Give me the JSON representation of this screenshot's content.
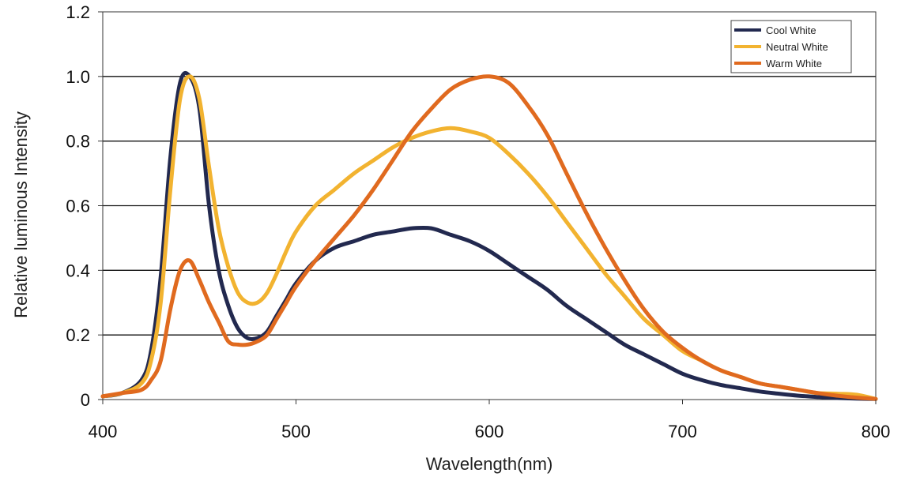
{
  "chart_data": {
    "type": "line",
    "title": "",
    "xlabel": "Wavelength(nm)",
    "ylabel": "Relative luminous Intensity",
    "xlim": [
      400,
      800
    ],
    "ylim": [
      0,
      1.2
    ],
    "x_ticks": [
      400,
      500,
      600,
      700,
      800
    ],
    "x_tick_labels": [
      "400",
      "500",
      "600",
      "700",
      "800"
    ],
    "y_ticks": [
      0,
      0.2,
      0.4,
      0.6,
      0.8,
      1.0,
      1.2
    ],
    "y_tick_labels": [
      "0",
      "0.2",
      "0.4",
      "0.6",
      "0.8",
      "1.0",
      "1.2"
    ],
    "grid": "horizontal",
    "legend_position": "top-right",
    "series": [
      {
        "name": "Cool White",
        "color": "#22294f",
        "x": [
          400,
          410,
          420,
          425,
          430,
          435,
          440,
          445,
          450,
          455,
          460,
          465,
          470,
          475,
          480,
          485,
          490,
          495,
          500,
          510,
          520,
          530,
          540,
          550,
          560,
          570,
          580,
          590,
          600,
          610,
          620,
          630,
          640,
          650,
          660,
          670,
          680,
          690,
          700,
          710,
          720,
          730,
          740,
          750,
          760,
          770,
          780,
          790,
          800
        ],
        "y": [
          0.01,
          0.02,
          0.06,
          0.15,
          0.38,
          0.75,
          0.98,
          1.0,
          0.9,
          0.6,
          0.4,
          0.29,
          0.22,
          0.19,
          0.19,
          0.21,
          0.26,
          0.31,
          0.36,
          0.43,
          0.47,
          0.49,
          0.51,
          0.52,
          0.53,
          0.53,
          0.51,
          0.49,
          0.46,
          0.42,
          0.38,
          0.34,
          0.29,
          0.25,
          0.21,
          0.17,
          0.14,
          0.11,
          0.08,
          0.06,
          0.045,
          0.035,
          0.025,
          0.018,
          0.012,
          0.008,
          0.005,
          0.003,
          0.002
        ]
      },
      {
        "name": "Neutral White",
        "color": "#f2b330",
        "x": [
          400,
          410,
          420,
          425,
          430,
          435,
          440,
          445,
          450,
          455,
          460,
          465,
          470,
          475,
          480,
          485,
          490,
          495,
          500,
          510,
          520,
          530,
          540,
          550,
          560,
          570,
          580,
          590,
          600,
          610,
          620,
          630,
          640,
          650,
          660,
          670,
          680,
          690,
          700,
          710,
          720,
          730,
          740,
          750,
          760,
          770,
          780,
          790,
          800
        ],
        "y": [
          0.01,
          0.02,
          0.05,
          0.12,
          0.3,
          0.65,
          0.93,
          1.0,
          0.93,
          0.72,
          0.53,
          0.41,
          0.33,
          0.3,
          0.3,
          0.33,
          0.39,
          0.46,
          0.52,
          0.6,
          0.65,
          0.7,
          0.74,
          0.78,
          0.81,
          0.83,
          0.84,
          0.83,
          0.81,
          0.76,
          0.7,
          0.63,
          0.55,
          0.47,
          0.39,
          0.32,
          0.25,
          0.2,
          0.15,
          0.12,
          0.09,
          0.07,
          0.05,
          0.04,
          0.03,
          0.02,
          0.018,
          0.015,
          0.002
        ]
      },
      {
        "name": "Warm White",
        "color": "#e06a1f",
        "x": [
          400,
          410,
          420,
          425,
          430,
          435,
          440,
          445,
          450,
          455,
          460,
          465,
          470,
          475,
          480,
          485,
          490,
          495,
          500,
          510,
          520,
          530,
          540,
          550,
          560,
          570,
          580,
          590,
          600,
          610,
          620,
          630,
          640,
          650,
          660,
          670,
          680,
          690,
          700,
          710,
          720,
          730,
          740,
          750,
          760,
          770,
          780,
          790,
          800
        ],
        "y": [
          0.01,
          0.02,
          0.03,
          0.06,
          0.12,
          0.28,
          0.4,
          0.43,
          0.37,
          0.3,
          0.24,
          0.18,
          0.17,
          0.17,
          0.18,
          0.2,
          0.25,
          0.3,
          0.35,
          0.43,
          0.5,
          0.57,
          0.65,
          0.74,
          0.83,
          0.9,
          0.96,
          0.99,
          1.0,
          0.98,
          0.91,
          0.82,
          0.7,
          0.58,
          0.47,
          0.37,
          0.28,
          0.21,
          0.16,
          0.12,
          0.09,
          0.07,
          0.05,
          0.04,
          0.03,
          0.02,
          0.012,
          0.006,
          0.002
        ]
      }
    ]
  }
}
